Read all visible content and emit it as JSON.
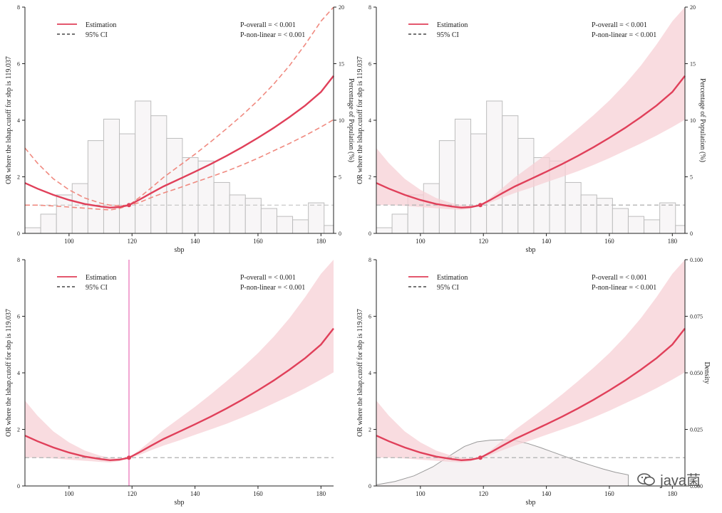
{
  "chart_data": [
    {
      "type": "line",
      "variant": "histogram_dashed_ci",
      "xlabel": "sbp",
      "ylabel": "OR where the lshap.cutoff for sbp is 119.037",
      "y2label": "Percentage of Population (%)",
      "xlim": [
        86,
        184
      ],
      "ylim": [
        0,
        8
      ],
      "y2lim": [
        0,
        20
      ],
      "xticks": [
        100,
        120,
        140,
        160,
        180
      ],
      "yticks": [
        0,
        2,
        4,
        6,
        8
      ],
      "y2ticks": [
        0,
        5,
        10,
        15,
        20
      ],
      "legend": [
        "Estimation",
        "95% CI"
      ],
      "annotations": [
        "P-overall = < 0.001",
        "P-non-linear = < 0.001"
      ],
      "cutoff": 119.037,
      "reference_or": 1
    },
    {
      "type": "line",
      "variant": "histogram_ribbon_ci",
      "xlabel": "sbp",
      "ylabel": "OR where the lshap.cutoff for sbp is 119.037",
      "y2label": "Percentage of Population (%)",
      "xlim": [
        86,
        184
      ],
      "ylim": [
        0,
        8
      ],
      "y2lim": [
        0,
        20
      ],
      "xticks": [
        100,
        120,
        140,
        160,
        180
      ],
      "yticks": [
        0,
        2,
        4,
        6,
        8
      ],
      "y2ticks": [
        0,
        5,
        10,
        15,
        20
      ],
      "legend": [
        "Estimation",
        "95% CI"
      ],
      "annotations": [
        "P-overall = < 0.001",
        "P-non-linear = < 0.001"
      ],
      "cutoff": 119.037,
      "reference_or": 1
    },
    {
      "type": "line",
      "variant": "ribbon_ci_vline",
      "xlabel": "sbp",
      "ylabel": "OR where the lshap.cutoff for sbp is 119.037",
      "xlim": [
        86,
        184
      ],
      "ylim": [
        0,
        8
      ],
      "xticks": [
        100,
        120,
        140,
        160,
        180
      ],
      "yticks": [
        0,
        2,
        4,
        6,
        8
      ],
      "legend": [
        "Estimation",
        "95% CI"
      ],
      "annotations": [
        "P-overall = < 0.001",
        "P-non-linear = < 0.001"
      ],
      "cutoff": 119.037,
      "reference_or": 1
    },
    {
      "type": "line",
      "variant": "density_ribbon_ci",
      "xlabel": "sbp",
      "ylabel": "OR where the lshap.cutoff for sbp is 119.037",
      "y2label": "Density",
      "xlim": [
        86,
        184
      ],
      "ylim": [
        0,
        8
      ],
      "y2lim": [
        0,
        0.1
      ],
      "xticks": [
        100,
        120,
        140,
        160,
        180
      ],
      "yticks": [
        0,
        2,
        4,
        6,
        8
      ],
      "y2ticks": [
        "0.000",
        "0.025",
        "0.050",
        "0.075",
        "0.100"
      ],
      "legend": [
        "Estimation",
        "95% CI"
      ],
      "annotations": [
        "P-overall = < 0.001",
        "P-non-linear = < 0.001"
      ],
      "cutoff": 119.037,
      "reference_or": 1
    }
  ],
  "series": {
    "estimation": {
      "x": [
        86,
        90,
        95,
        100,
        105,
        110,
        113,
        116,
        119.037,
        122,
        126,
        130,
        135,
        140,
        145,
        150,
        155,
        160,
        165,
        170,
        175,
        180,
        184
      ],
      "y": [
        1.78,
        1.58,
        1.36,
        1.18,
        1.04,
        0.95,
        0.91,
        0.93,
        1.0,
        1.17,
        1.42,
        1.66,
        1.92,
        2.18,
        2.45,
        2.74,
        3.05,
        3.38,
        3.73,
        4.11,
        4.52,
        5.0,
        5.57
      ]
    },
    "ci_lower": {
      "x": [
        86,
        90,
        95,
        100,
        105,
        110,
        113,
        116,
        119.037,
        122,
        126,
        130,
        135,
        140,
        145,
        150,
        155,
        160,
        165,
        170,
        175,
        180,
        184
      ],
      "y": [
        1.0,
        1.0,
        0.97,
        0.93,
        0.89,
        0.85,
        0.83,
        0.88,
        1.0,
        1.08,
        1.26,
        1.43,
        1.61,
        1.81,
        2.0,
        2.2,
        2.42,
        2.66,
        2.92,
        3.18,
        3.46,
        3.76,
        4.02
      ]
    },
    "ci_upper": {
      "x": [
        86,
        90,
        95,
        100,
        105,
        110,
        113,
        116,
        119.037,
        122,
        126,
        130,
        135,
        140,
        145,
        150,
        155,
        160,
        165,
        170,
        175,
        180,
        184
      ],
      "y": [
        3.02,
        2.48,
        1.93,
        1.54,
        1.25,
        1.07,
        1.0,
        0.98,
        1.0,
        1.24,
        1.6,
        1.98,
        2.39,
        2.8,
        3.24,
        3.7,
        4.18,
        4.7,
        5.28,
        5.93,
        6.68,
        7.5,
        8.0
      ]
    },
    "histogram": {
      "bin_edges": [
        86,
        91,
        96,
        101,
        106,
        111,
        116,
        121,
        126,
        131,
        136,
        141,
        146,
        151,
        156,
        161,
        166,
        171,
        176,
        181,
        186
      ],
      "percent": [
        0.5,
        1.7,
        3.4,
        4.4,
        8.2,
        10.1,
        8.8,
        11.7,
        10.4,
        8.4,
        6.7,
        6.4,
        4.5,
        3.4,
        3.1,
        2.2,
        1.5,
        1.2,
        2.7,
        0.7
      ]
    },
    "density": {
      "x": [
        86,
        92,
        98,
        104,
        110,
        114,
        118,
        122,
        126,
        130,
        134,
        138,
        142,
        146,
        150,
        154,
        158,
        162,
        166
      ],
      "y": [
        0.0005,
        0.002,
        0.0045,
        0.0085,
        0.014,
        0.0175,
        0.0195,
        0.0202,
        0.0204,
        0.0201,
        0.0188,
        0.017,
        0.015,
        0.013,
        0.011,
        0.0092,
        0.0075,
        0.006,
        0.0049
      ]
    }
  },
  "colors": {
    "estimation": "#e0405a",
    "ci_dash": "#f08a80",
    "ribbon": "#f7d0d6",
    "reference_line": "#bbbbbb",
    "hist_fill": "#f8f6f7",
    "hist_stroke": "#bdbdbd",
    "vline": "#f2a6d2",
    "density": "#9a9a9a"
  },
  "watermark": "java菌"
}
